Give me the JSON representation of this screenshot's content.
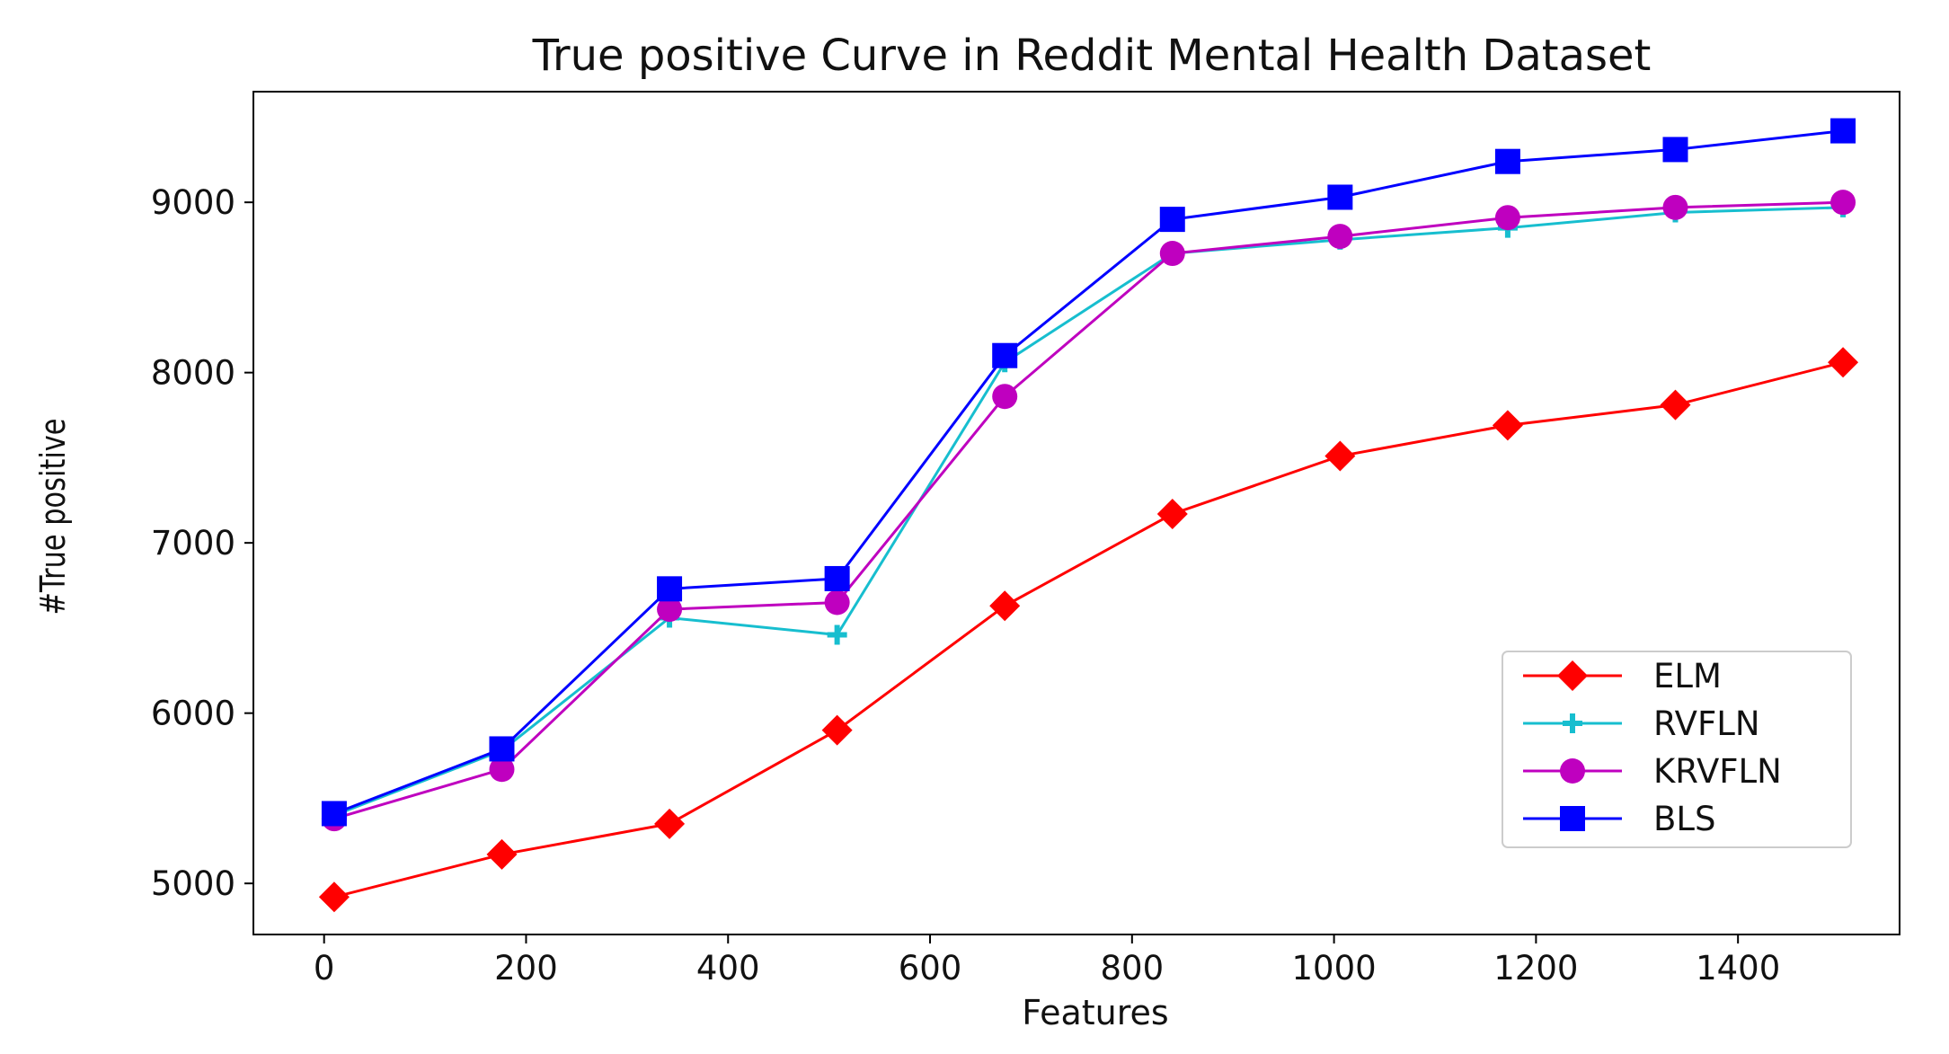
{
  "chart_data": {
    "type": "line",
    "title": "True positive Curve in Reddit Mental Health Dataset",
    "xlabel": "Features",
    "ylabel": "#True positive",
    "xlim": [
      -70,
      1560
    ],
    "ylim": [
      4700,
      9650
    ],
    "xticks": [
      0,
      200,
      400,
      600,
      800,
      1000,
      1200,
      1400
    ],
    "yticks": [
      5000,
      6000,
      7000,
      8000,
      9000
    ],
    "xtick_labels": [
      "0",
      "200",
      "400",
      "600",
      "800",
      "1000",
      "1200",
      "1400"
    ],
    "ytick_labels": [
      "5000",
      "6000",
      "7000",
      "8000",
      "9000"
    ],
    "grid": false,
    "legend_position": "lower-right",
    "x": [
      10,
      176,
      342,
      508,
      674,
      840,
      1006,
      1172,
      1338,
      1504
    ],
    "series": [
      {
        "name": "ELM",
        "color": "#ff0000",
        "marker": "diamond",
        "values": [
          4920,
          5170,
          5350,
          5900,
          6630,
          7170,
          7510,
          7690,
          7810,
          8060
        ]
      },
      {
        "name": "RVFLN",
        "color": "#17becf",
        "marker": "plus",
        "values": [
          5400,
          5780,
          6560,
          6460,
          8060,
          8700,
          8780,
          8850,
          8940,
          8970
        ]
      },
      {
        "name": "KRVFLN",
        "color": "#bf00bf",
        "marker": "circle",
        "values": [
          5380,
          5670,
          6610,
          6650,
          7860,
          8700,
          8800,
          8910,
          8970,
          9000
        ]
      },
      {
        "name": "BLS",
        "color": "#0000ff",
        "marker": "square",
        "values": [
          5410,
          5790,
          6730,
          6790,
          8100,
          8900,
          9030,
          9240,
          9310,
          9420
        ]
      }
    ]
  }
}
